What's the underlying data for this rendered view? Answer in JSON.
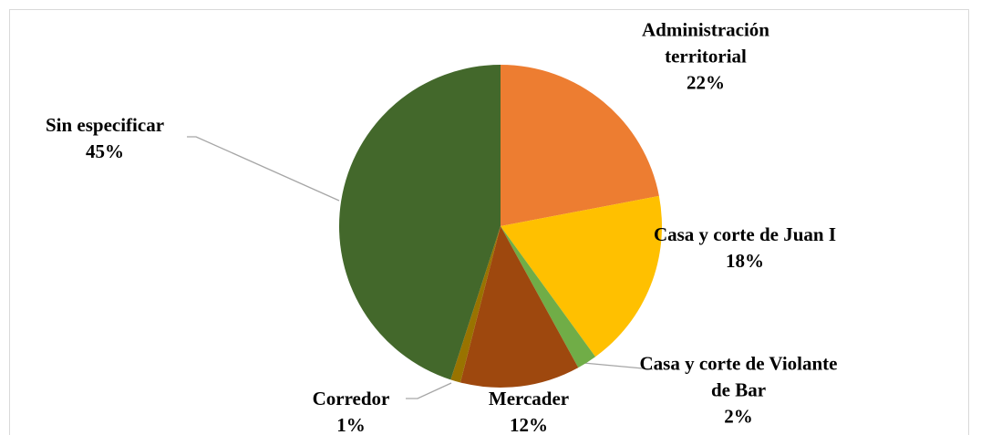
{
  "chart_data": {
    "type": "pie",
    "categories": [
      "Administración territorial",
      "Casa y corte de Juan I",
      "Casa y corte de Violante de Bar",
      "Mercader",
      "Corredor",
      "Sin especificar"
    ],
    "values": [
      22,
      18,
      2,
      12,
      1,
      45
    ],
    "value_labels": [
      "22%",
      "18%",
      "2%",
      "12%",
      "1%",
      "45%"
    ],
    "colors": [
      "#ED7D31",
      "#FFC000",
      "#70AD47",
      "#9E480E",
      "#997300",
      "#43682B"
    ]
  }
}
